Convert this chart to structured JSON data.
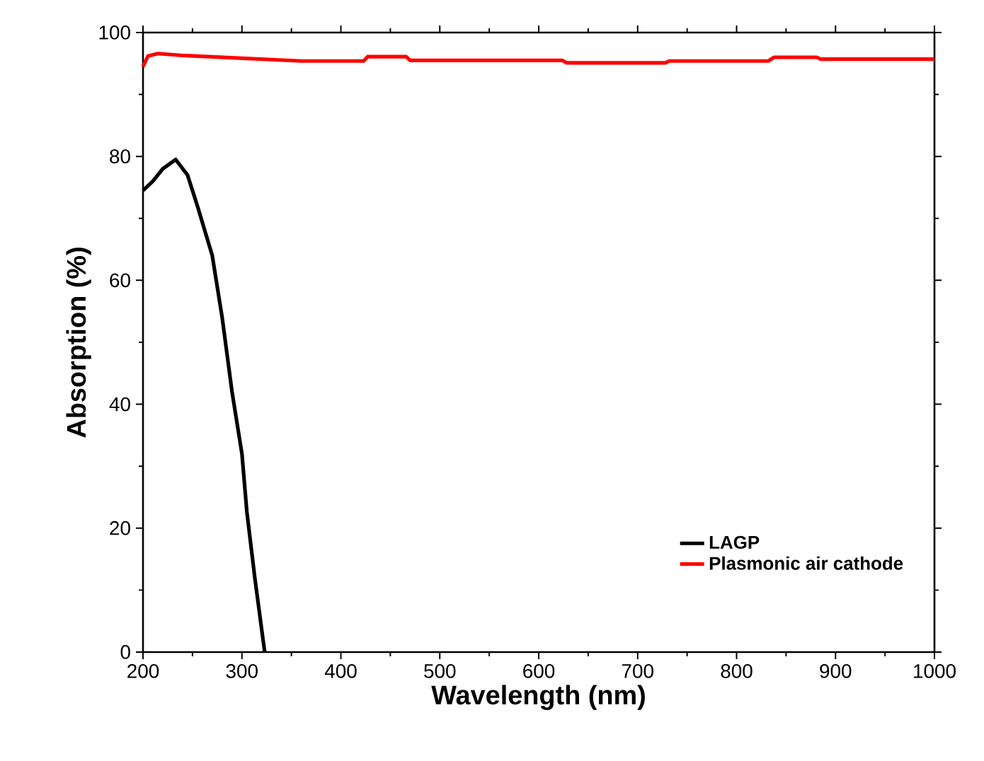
{
  "chart_data": {
    "type": "line",
    "xlabel": "Wavelength (nm)",
    "ylabel": "Absorption (%)",
    "xlim": [
      200,
      1000
    ],
    "ylim": [
      0,
      100
    ],
    "xticks": [
      200,
      300,
      400,
      500,
      600,
      700,
      800,
      900,
      1000
    ],
    "yticks": [
      0,
      20,
      40,
      60,
      80,
      100
    ],
    "grid": false,
    "legend": "bottom right",
    "marker": "none",
    "line_style": "solid",
    "series": [
      {
        "name": "LAGP",
        "color": "#000000",
        "x": [
          200,
          210,
          220,
          233,
          245,
          255,
          270,
          280,
          290,
          300,
          305,
          313,
          323
        ],
        "values": [
          74.5,
          76,
          78,
          79.5,
          77,
          72,
          64,
          54,
          42,
          32,
          22.6,
          12,
          0
        ]
      },
      {
        "name": "Plasmonic air cathode",
        "color": "#ff0000",
        "x": [
          200,
          205,
          215,
          240,
          360,
          423,
          427,
          466,
          470,
          624,
          628,
          728,
          732,
          832,
          838,
          881,
          885,
          1000
        ],
        "values": [
          94.5,
          96.2,
          96.6,
          96.3,
          95.4,
          95.4,
          96.1,
          96.1,
          95.5,
          95.5,
          95.1,
          95.1,
          95.4,
          95.4,
          96,
          96,
          95.7,
          95.7
        ]
      }
    ]
  }
}
